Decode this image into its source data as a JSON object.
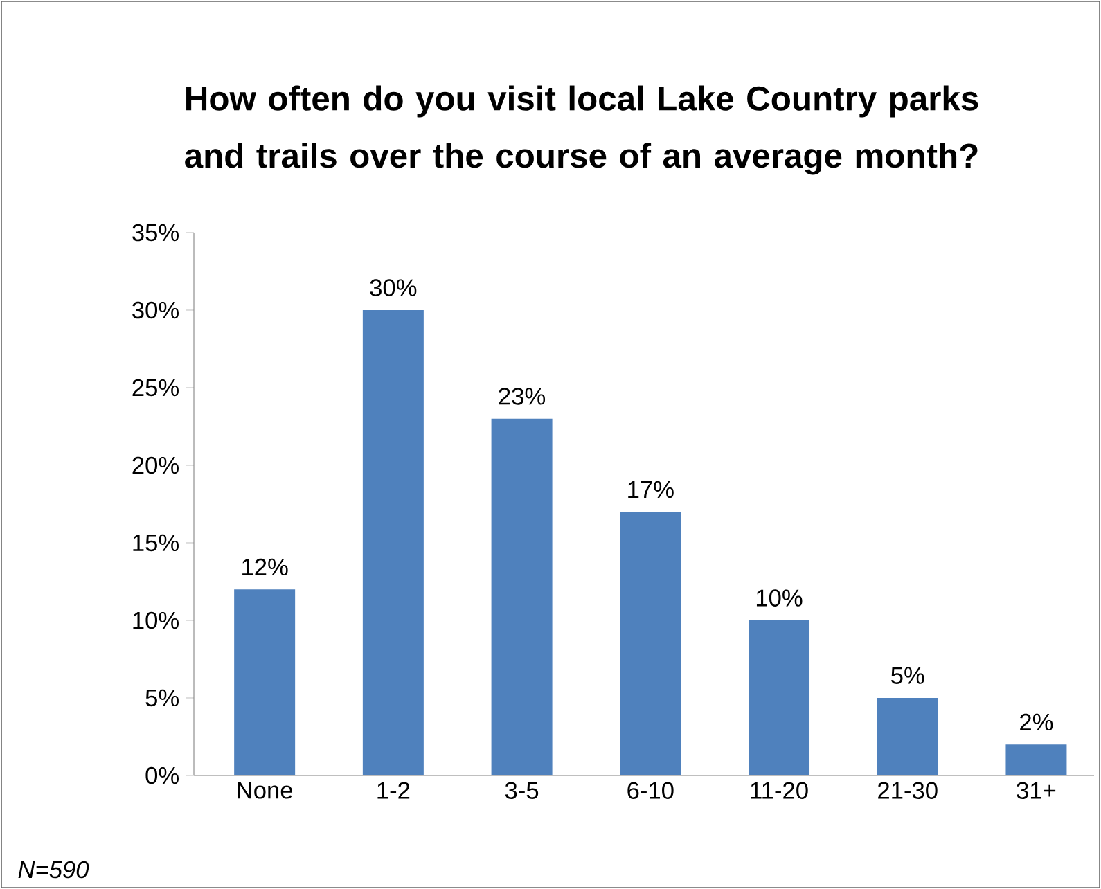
{
  "chart_data": {
    "type": "bar",
    "title": "How often do you visit local Lake Country parks and trails over the course of an average month?",
    "categories": [
      "None",
      "1-2",
      "3-5",
      "6-10",
      "11-20",
      "21-30",
      "31+"
    ],
    "values": [
      12,
      30,
      23,
      17,
      10,
      5,
      2
    ],
    "value_labels": [
      "12%",
      "30%",
      "23%",
      "17%",
      "10%",
      "5%",
      "2%"
    ],
    "color": "#4f81bd",
    "ylim": [
      0,
      35
    ],
    "yticks": [
      {
        "value": 0,
        "label": "0%"
      },
      {
        "value": 5,
        "label": "5%"
      },
      {
        "value": 10,
        "label": "10%"
      },
      {
        "value": 15,
        "label": "15%"
      },
      {
        "value": 20,
        "label": "20%"
      },
      {
        "value": 25,
        "label": "25%"
      },
      {
        "value": 30,
        "label": "30%"
      },
      {
        "value": 35,
        "label": "35%"
      }
    ],
    "grid": false,
    "annotations": [
      "*N=590*"
    ]
  }
}
